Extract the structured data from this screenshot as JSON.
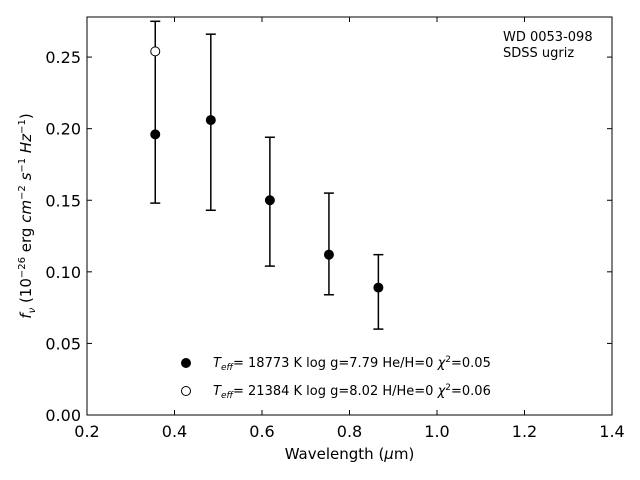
{
  "chart_data": {
    "type": "scatter",
    "xlabel": "Wavelength (μm)",
    "ylabel": "fν (10⁻²⁶ erg cm⁻² s⁻¹ Hz⁻¹)",
    "xlim": [
      0.2,
      1.4
    ],
    "ylim": [
      0.0,
      0.278
    ],
    "x_ticks": [
      0.2,
      0.4,
      0.6,
      0.8,
      1.0,
      1.2,
      1.4
    ],
    "x_tick_labels": [
      "0.2",
      "0.4",
      "0.6",
      "0.8",
      "1.0",
      "1.2",
      "1.4"
    ],
    "y_ticks": [
      0.0,
      0.05,
      0.1,
      0.15,
      0.2,
      0.25
    ],
    "y_tick_labels": [
      "0.00",
      "0.05",
      "0.10",
      "0.15",
      "0.20",
      "0.25"
    ],
    "grid": false,
    "annotation_lines": [
      "WD 0053-098",
      "SDSS ugriz"
    ],
    "observed": {
      "x": [
        0.356,
        0.483,
        0.618,
        0.753,
        0.866
      ],
      "y": [
        0.196,
        0.206,
        0.15,
        0.112,
        0.089
      ],
      "yerr_low": [
        0.148,
        0.143,
        0.104,
        0.084,
        0.06
      ],
      "yerr_high": [
        0.275,
        0.266,
        0.194,
        0.155,
        0.112
      ]
    },
    "series": [
      {
        "label": "Teff= 18773 K  log g=7.79  He/H=0  χ²=0.05",
        "marker": "filled-circle",
        "x": [
          0.356,
          0.483,
          0.618,
          0.753,
          0.866
        ],
        "y": [
          0.196,
          0.206,
          0.15,
          0.112,
          0.089
        ]
      },
      {
        "label": "Teff= 21384 K  log g=8.02  H/He=0  χ²=0.06",
        "marker": "open-circle",
        "x": [
          0.356
        ],
        "y": [
          0.254
        ]
      }
    ],
    "legend": {
      "location": "bottom-center",
      "entries": [
        {
          "teff_value": "= 18773 K  log g=7.79  He/H=0  ",
          "chi_value": "=0.05"
        },
        {
          "teff_value": "= 21384 K  log g=8.02  H/He=0  ",
          "chi_value": "=0.06"
        }
      ]
    }
  }
}
